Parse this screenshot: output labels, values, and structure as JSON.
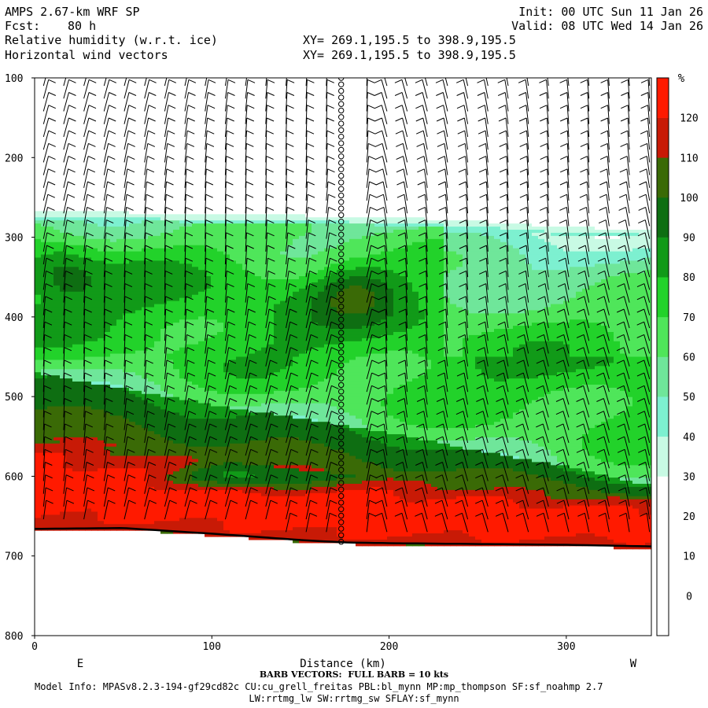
{
  "header": {
    "title": "AMPS 2.67-km WRF SP",
    "init": "Init: 00 UTC Sun 11 Jan 26",
    "fcst_label": "Fcst:",
    "fcst_value": "80 h",
    "valid": "Valid: 08 UTC Wed 14 Jan 26",
    "field1": "Relative humidity (w.r.t. ice)",
    "field2": "Horizontal wind vectors",
    "xy1": "XY= 269.1,195.5 to 398.9,195.5",
    "xy2": "XY= 269.1,195.5 to 398.9,195.5"
  },
  "footer": {
    "barb_note": "BARB VECTORS:  FULL BARB = 10 kts",
    "model_info": "Model Info: MPASv8.2.3-194-gf29cd82c CU:cu_grell_freitas PBL:bl_mynn MP:mp_thompson SF:sf_noahmp 2.7",
    "model_info2": "LW:rrtmg_lw SW:rrtmg_sw SFLAY:sf_mynn"
  },
  "chart_data": {
    "type": "heatmap",
    "xlabel": "Distance (km)",
    "ylabel": "",
    "xlim": [
      0,
      348
    ],
    "ylim": [
      800,
      100
    ],
    "x_ticks": [
      0,
      100,
      200,
      300
    ],
    "y_ticks": [
      100,
      200,
      300,
      400,
      500,
      600,
      700,
      800
    ],
    "x_end_labels": {
      "left": "E",
      "right": "W"
    },
    "colorbar": {
      "unit": "%",
      "levels": [
        0,
        10,
        20,
        30,
        40,
        50,
        60,
        70,
        80,
        90,
        100,
        110,
        120
      ],
      "colors": [
        "#ffffff",
        "#ffffff",
        "#ffffff",
        "#ffffff",
        "#c8fae4",
        "#7df0d0",
        "#6fe69a",
        "#4fe65a",
        "#22d22a",
        "#119a18",
        "#0e6e12",
        "#3a6a06",
        "#c81a06",
        "#ff1a00"
      ]
    },
    "terrain_pressure": {
      "x": [
        0,
        50,
        100,
        150,
        175,
        200,
        250,
        300,
        348
      ],
      "p": [
        666,
        665,
        672,
        680,
        683,
        684,
        685,
        686,
        688
      ]
    },
    "sounding_x": 173,
    "rh_field": {
      "note": "main moist layer bounds in hPa along distance",
      "x": [
        0,
        50,
        100,
        150,
        200,
        250,
        300,
        348
      ],
      "top_p": [
        278,
        279,
        282,
        283,
        285,
        290,
        298,
        300
      ],
      "moist_base_p": [
        470,
        490,
        510,
        528,
        545,
        568,
        588,
        612
      ],
      "saturated_base_p": [
        550,
        565,
        580,
        592,
        603,
        613,
        622,
        630
      ],
      "peak_max": {
        "x": 180,
        "p": 365,
        "value": 95
      }
    }
  }
}
